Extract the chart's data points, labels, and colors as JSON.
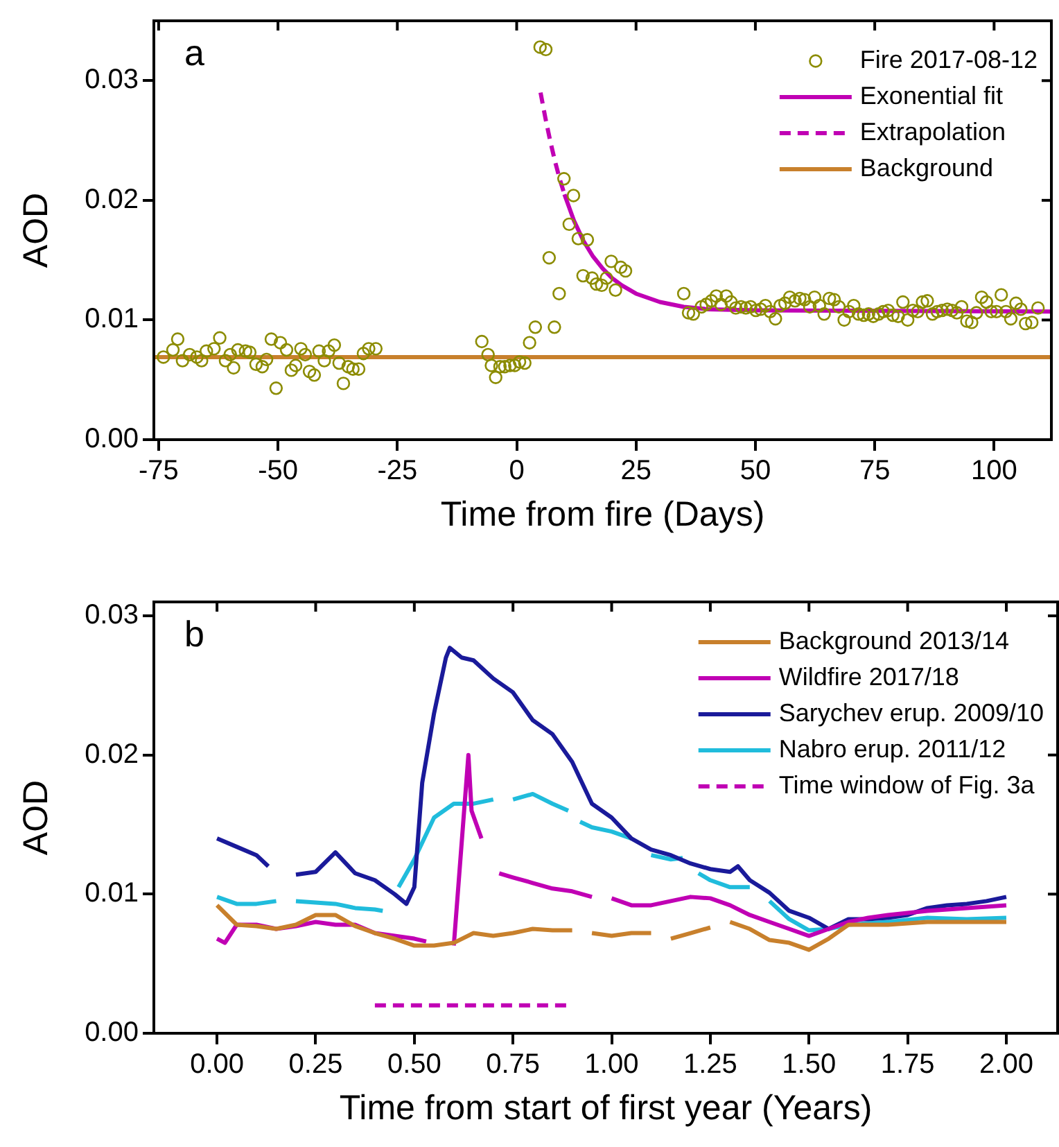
{
  "chart_data": [
    {
      "type": "scatter",
      "xlabel": "Time from fire (Days)",
      "ylabel": "AOD",
      "annotations": [
        "a"
      ],
      "legend": "top right",
      "grid": false,
      "xlim": [
        -76,
        112
      ],
      "ylim": [
        0,
        0.035
      ],
      "xticks": [
        -75,
        -50,
        -25,
        0,
        25,
        50,
        75,
        100
      ],
      "yticks": [
        {
          "value": 0,
          "label": "0.00"
        },
        {
          "value": 0.01,
          "label": "0.01"
        },
        {
          "value": 0.02,
          "label": "0.02"
        },
        {
          "value": 0.03,
          "label": "0.03"
        }
      ],
      "series": [
        {
          "name": "Fire 2017-08-12",
          "marker": "circle",
          "color": "#8c8c00",
          "x": [
            -74,
            -72,
            -71,
            -70,
            -68.5,
            -67,
            -66,
            -65,
            -63.4,
            -62.2,
            -61,
            -60,
            -59.3,
            -58.4,
            -56.8,
            -55.9,
            -54.6,
            -53.3,
            -52.4,
            -51.4,
            -50.4,
            -49.5,
            -48.2,
            -47.2,
            -46.3,
            -45.2,
            -44.3,
            -43.4,
            -42.4,
            -41.4,
            -40.3,
            -39.4,
            -38.2,
            -37.2,
            -36.3,
            -35.3,
            -34.3,
            -33.1,
            -32.1,
            -31,
            -29.5,
            -7.3,
            -6,
            -5.3,
            -4.4,
            -3.5,
            -2.5,
            -1.4,
            -0.4,
            0.6,
            1.7,
            2.7,
            3.9,
            4.9,
            6.1,
            6.8,
            7.9,
            8.9,
            9.9,
            11,
            11.9,
            12.9,
            13.9,
            14.8,
            15.8,
            16.7,
            17.8,
            18.8,
            19.8,
            20.7,
            21.8,
            22.8,
            35,
            36,
            37,
            38.7,
            39.7,
            40.8,
            41.8,
            42.8,
            43.9,
            44.9,
            45.9,
            47,
            48,
            49,
            50.1,
            51.1,
            52.1,
            53.1,
            54.2,
            55.2,
            56.2,
            57.2,
            58.3,
            59.3,
            60.3,
            61.4,
            62.4,
            63.4,
            64.4,
            65.5,
            66.5,
            67.5,
            68.6,
            69.6,
            70.6,
            71.6,
            72.7,
            73.7,
            74.7,
            75.8,
            76.8,
            77.8,
            78.8,
            79.9,
            80.9,
            81.9,
            83,
            84,
            85,
            86,
            87.1,
            88.1,
            89.1,
            90.2,
            91.2,
            92.2,
            93.2,
            94.3,
            95.3,
            96.3,
            97.4,
            98.4,
            99.4,
            100.5,
            101.5,
            102.5,
            103.5,
            104.6,
            105.6,
            106.6,
            107.9,
            109.2
          ],
          "values": [
            0.0069,
            0.0075,
            0.0084,
            0.0066,
            0.0071,
            0.0069,
            0.0066,
            0.0074,
            0.0076,
            0.0085,
            0.0066,
            0.0071,
            0.006,
            0.0075,
            0.0074,
            0.0073,
            0.0063,
            0.0061,
            0.0067,
            0.0084,
            0.0043,
            0.0081,
            0.0075,
            0.0058,
            0.0062,
            0.0076,
            0.0071,
            0.0057,
            0.0054,
            0.0074,
            0.0066,
            0.0074,
            0.0079,
            0.0064,
            0.0047,
            0.0061,
            0.0059,
            0.0059,
            0.0072,
            0.0076,
            0.0076,
            0.0082,
            0.0071,
            0.0062,
            0.0052,
            0.0061,
            0.0061,
            0.0062,
            0.0062,
            0.0065,
            0.0064,
            0.0081,
            0.0094,
            0.0328,
            0.0326,
            0.0152,
            0.0094,
            0.0122,
            0.0218,
            0.018,
            0.0204,
            0.0168,
            0.0137,
            0.0167,
            0.0135,
            0.013,
            0.0129,
            0.0135,
            0.0149,
            0.0125,
            0.0144,
            0.0141,
            0.0122,
            0.0106,
            0.0105,
            0.0111,
            0.0113,
            0.0116,
            0.012,
            0.0113,
            0.012,
            0.0115,
            0.011,
            0.0111,
            0.011,
            0.0111,
            0.0108,
            0.0109,
            0.0112,
            0.0107,
            0.0101,
            0.0112,
            0.0114,
            0.0119,
            0.0116,
            0.0118,
            0.0117,
            0.0111,
            0.0119,
            0.0112,
            0.0105,
            0.0118,
            0.0117,
            0.0111,
            0.01,
            0.0107,
            0.0112,
            0.0105,
            0.0104,
            0.0105,
            0.0103,
            0.0105,
            0.0107,
            0.0108,
            0.0104,
            0.0103,
            0.0115,
            0.01,
            0.0108,
            0.0107,
            0.0115,
            0.0116,
            0.0105,
            0.0107,
            0.0108,
            0.0109,
            0.0108,
            0.0106,
            0.0111,
            0.0099,
            0.0098,
            0.0106,
            0.0119,
            0.0115,
            0.0107,
            0.0107,
            0.0121,
            0.0107,
            0.0101,
            0.0114,
            0.0109,
            0.0097,
            0.0098,
            0.011
          ]
        },
        {
          "name": "Exonential fit",
          "type": "line",
          "marker": "none",
          "line_style": "solid",
          "color": "#c000b4",
          "x": [
            10,
            12,
            14,
            16,
            18,
            20,
            22,
            25,
            30,
            35,
            40,
            50,
            112
          ],
          "values": [
            0.0205,
            0.0183,
            0.0166,
            0.0153,
            0.0143,
            0.0135,
            0.0129,
            0.0122,
            0.0115,
            0.0111,
            0.0109,
            0.0108,
            0.0107
          ]
        },
        {
          "name": "Extrapolation",
          "type": "line",
          "marker": "none",
          "line_style": "dashed",
          "color": "#c000b4",
          "x": [
            5,
            6,
            7,
            8,
            9,
            10
          ],
          "values": [
            0.029,
            0.0269,
            0.025,
            0.0233,
            0.0218,
            0.0205
          ]
        },
        {
          "name": "Background",
          "type": "line",
          "marker": "none",
          "line_style": "solid",
          "color": "#c8802c",
          "x": [
            -76,
            112
          ],
          "values": [
            0.0069,
            0.0069
          ]
        }
      ]
    },
    {
      "type": "line",
      "xlabel": "Time from start of first year (Years)",
      "ylabel": "AOD",
      "annotations": [
        "b"
      ],
      "legend": "top right",
      "grid": false,
      "xlim": [
        -0.16,
        2.13
      ],
      "ylim": [
        0,
        0.031
      ],
      "xticks": [
        {
          "value": 0,
          "label": "0.00"
        },
        0.25,
        {
          "value": 0.5,
          "label": "0.50"
        },
        0.75,
        {
          "value": 1,
          "label": "1.00"
        },
        1.25,
        {
          "value": 1.5,
          "label": "1.50"
        },
        1.75,
        {
          "value": 2,
          "label": "2.00"
        }
      ],
      "yticks": [
        {
          "value": 0,
          "label": "0.00"
        },
        {
          "value": 0.01,
          "label": "0.01"
        },
        {
          "value": 0.02,
          "label": "0.02"
        },
        {
          "value": 0.03,
          "label": "0.03"
        }
      ],
      "series": [
        {
          "name": "Background 2013/14",
          "color": "#c8802c",
          "line_style": "solid",
          "x": [
            0,
            0.05,
            0.1,
            0.15,
            0.2,
            0.25,
            0.3,
            0.35,
            0.4,
            0.45,
            0.5,
            0.55,
            0.6,
            0.65,
            0.7,
            0.75,
            0.8,
            0.85,
            0.9,
            0.92,
            0.95,
            1,
            1.05,
            1.1,
            1.12,
            1.15,
            1.2,
            1.25,
            1.28,
            1.3,
            1.35,
            1.4,
            1.45,
            1.5,
            1.55,
            1.6,
            1.7,
            1.8,
            1.9,
            2
          ],
          "values": [
            0.0092,
            0.0078,
            0.0077,
            0.0075,
            0.0078,
            0.0085,
            0.0085,
            0.0077,
            0.0072,
            0.0068,
            0.0063,
            0.0063,
            0.0065,
            0.0072,
            0.007,
            0.0072,
            0.0075,
            0.0074,
            0.0074,
            null,
            0.0072,
            0.007,
            0.0072,
            0.0072,
            null,
            0.0068,
            0.0072,
            0.0076,
            null,
            0.008,
            0.0075,
            0.0067,
            0.0065,
            0.006,
            0.0068,
            0.0078,
            0.0078,
            0.008,
            0.008,
            0.008
          ]
        },
        {
          "name": "Wildfire 2017/18",
          "color": "#c000b4",
          "line_style": "solid",
          "x": [
            0,
            0.02,
            0.05,
            0.1,
            0.15,
            0.2,
            0.25,
            0.3,
            0.35,
            0.4,
            0.45,
            0.5,
            0.53,
            0.56,
            0.6,
            0.637,
            0.645,
            0.67,
            0.69,
            0.715,
            0.75,
            0.8,
            0.85,
            0.9,
            0.95,
            0.98,
            1,
            1.05,
            1.1,
            1.15,
            1.2,
            1.25,
            1.3,
            1.35,
            1.4,
            1.45,
            1.5,
            1.55,
            1.6,
            1.65,
            1.7,
            1.8,
            1.9,
            2
          ],
          "values": [
            0.0068,
            0.0065,
            0.0078,
            0.0078,
            0.0075,
            0.0077,
            0.008,
            0.0078,
            0.0078,
            0.0072,
            0.007,
            0.0068,
            0.0066,
            null,
            0.0063,
            0.02,
            0.016,
            0.014,
            null,
            0.0115,
            0.0112,
            0.0108,
            0.0104,
            0.0102,
            0.0098,
            null,
            0.0097,
            0.0092,
            0.0092,
            0.0095,
            0.0098,
            0.0097,
            0.0092,
            0.0085,
            0.008,
            0.0075,
            0.007,
            0.0075,
            0.008,
            0.0083,
            0.0085,
            0.0088,
            0.009,
            0.0092
          ]
        },
        {
          "name": "Sarychev erup. 2009/10",
          "color": "#1a1a9a",
          "line_style": "solid",
          "x": [
            0,
            0.05,
            0.1,
            0.13,
            0.17,
            0.2,
            0.25,
            0.3,
            0.35,
            0.4,
            0.45,
            0.48,
            0.5,
            0.52,
            0.55,
            0.58,
            0.59,
            0.62,
            0.65,
            0.7,
            0.75,
            0.8,
            0.85,
            0.9,
            0.95,
            1,
            1.05,
            1.1,
            1.15,
            1.2,
            1.25,
            1.3,
            1.32,
            1.35,
            1.4,
            1.45,
            1.5,
            1.55,
            1.6,
            1.65,
            1.7,
            1.75,
            1.8,
            1.85,
            1.9,
            1.95,
            2
          ],
          "values": [
            0.014,
            0.0134,
            0.0128,
            0.012,
            null,
            0.0114,
            0.0116,
            0.013,
            0.0115,
            0.011,
            0.01,
            0.0093,
            0.0105,
            0.018,
            0.023,
            0.027,
            0.0277,
            0.027,
            0.0268,
            0.0255,
            0.0245,
            0.0225,
            0.0215,
            0.0195,
            0.0165,
            0.0155,
            0.014,
            0.0132,
            0.0128,
            0.0122,
            0.0118,
            0.0116,
            0.012,
            0.011,
            0.0101,
            0.0088,
            0.0083,
            0.0075,
            0.0082,
            0.0082,
            0.0083,
            0.0085,
            0.009,
            0.0092,
            0.0093,
            0.0095,
            0.0098
          ]
        },
        {
          "name": "Nabro erup. 2011/12",
          "color": "#20bcdc",
          "line_style": "solid",
          "x": [
            0,
            0.05,
            0.1,
            0.15,
            0.18,
            0.2,
            0.25,
            0.3,
            0.35,
            0.4,
            0.42,
            0.44,
            0.46,
            0.5,
            0.55,
            0.6,
            0.65,
            0.7,
            0.73,
            0.75,
            0.8,
            0.85,
            0.89,
            0.9,
            0.92,
            0.95,
            1,
            1.05,
            1.07,
            1.1,
            1.15,
            1.18,
            1.2,
            1.22,
            1.25,
            1.3,
            1.35,
            1.38,
            1.4,
            1.45,
            1.5,
            1.55,
            1.6,
            1.7,
            1.8,
            1.9,
            2
          ],
          "values": [
            0.0098,
            0.0093,
            0.0093,
            0.0095,
            null,
            0.0095,
            0.0094,
            0.0093,
            0.009,
            0.0089,
            0.0088,
            null,
            0.0105,
            0.0125,
            0.0155,
            0.0165,
            0.0165,
            0.0168,
            null,
            0.0168,
            0.0172,
            0.0165,
            0.016,
            null,
            0.0152,
            0.0148,
            0.0145,
            0.014,
            null,
            0.0128,
            0.0125,
            0.0126,
            null,
            0.0115,
            0.011,
            0.0105,
            0.0105,
            null,
            0.0095,
            0.0082,
            0.0074,
            0.0075,
            0.0078,
            0.008,
            0.0083,
            0.0082,
            0.0083
          ]
        },
        {
          "name": "Time window of Fig. 3a",
          "color": "#c000b4",
          "line_style": "dashed",
          "x": [
            0.4,
            0.89
          ],
          "values": [
            0.002,
            0.002
          ]
        }
      ]
    }
  ]
}
